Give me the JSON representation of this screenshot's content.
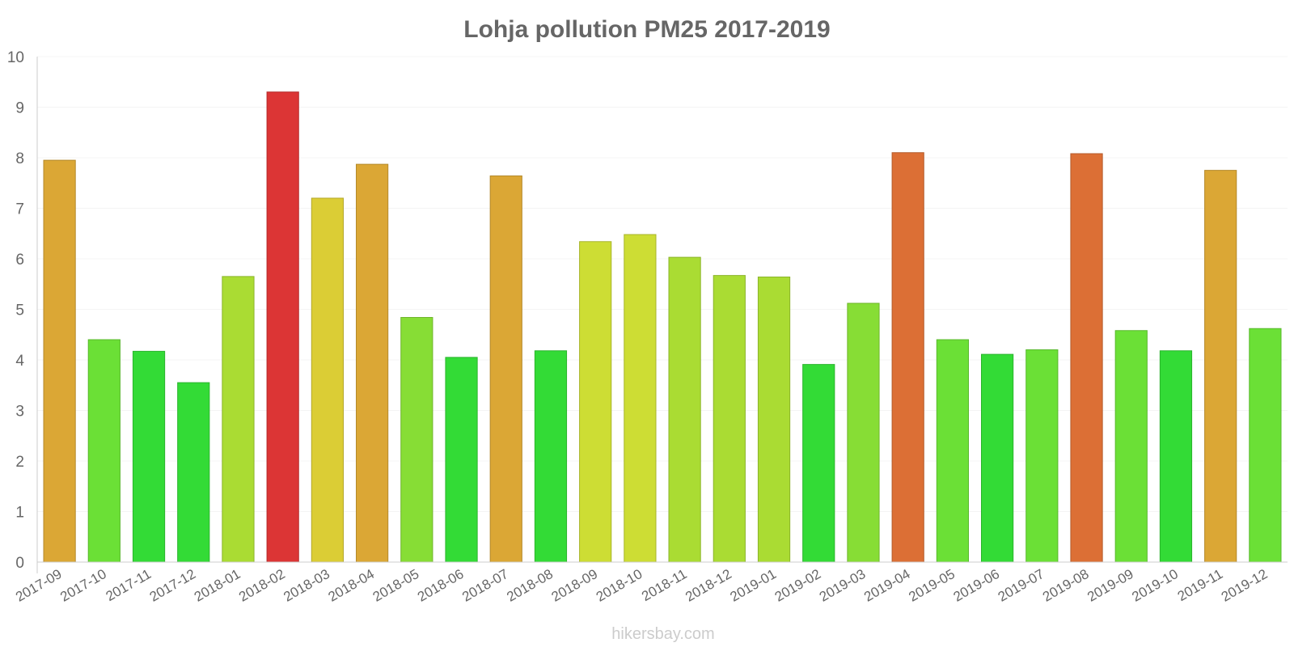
{
  "chart_data": {
    "type": "bar",
    "title": "Lohja pollution PM25 2017-2019",
    "xlabel": "",
    "ylabel": "",
    "ylim": [
      0,
      10
    ],
    "yticks": [
      0,
      1,
      2,
      3,
      4,
      5,
      6,
      7,
      8,
      9,
      10
    ],
    "grid": true,
    "categories": [
      "2017-09",
      "2017-10",
      "2017-11",
      "2017-12",
      "2018-01",
      "2018-02",
      "2018-03",
      "2018-04",
      "2018-05",
      "2018-06",
      "2018-07",
      "2018-08",
      "2018-09",
      "2018-10",
      "2018-11",
      "2018-12",
      "2019-01",
      "2019-02",
      "2019-03",
      "2019-04",
      "2019-05",
      "2019-06",
      "2019-07",
      "2019-08",
      "2019-09",
      "2019-10",
      "2019-11",
      "2019-12"
    ],
    "values": [
      7.95,
      4.4,
      4.17,
      3.55,
      5.65,
      9.3,
      7.2,
      7.87,
      4.84,
      4.05,
      7.64,
      4.18,
      6.34,
      6.48,
      6.03,
      5.67,
      5.64,
      3.91,
      5.12,
      8.1,
      4.4,
      4.11,
      4.2,
      8.08,
      4.58,
      4.18,
      7.75,
      4.62
    ],
    "colors": [
      "#dba735",
      "#6be036",
      "#33db36",
      "#33db36",
      "#aadc33",
      "#dc3535",
      "#dbcd35",
      "#dba735",
      "#87dd35",
      "#33db36",
      "#dba735",
      "#33db36",
      "#cddd34",
      "#cddd34",
      "#aadc33",
      "#aadc33",
      "#aadc33",
      "#33db36",
      "#87dd35",
      "#dc6f35",
      "#6be036",
      "#33db36",
      "#6be036",
      "#dc6f35",
      "#6be036",
      "#33db36",
      "#dba735",
      "#6be036"
    ]
  },
  "watermark": "hikersbay.com"
}
